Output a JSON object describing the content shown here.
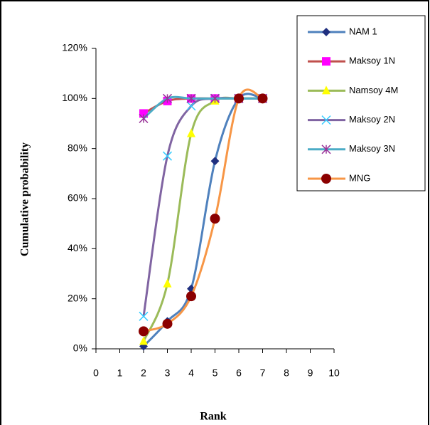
{
  "chart_data": {
    "type": "line",
    "smooth": true,
    "x_label": "Rank",
    "y_label": "Cumulative probability",
    "x": [
      2,
      3,
      4,
      5,
      6,
      7
    ],
    "series": [
      {
        "name": "NAM 1",
        "color": "#4F81BD",
        "marker_color": "#1F2F7F",
        "marker": "diamond",
        "values": [
          1,
          11,
          24,
          75,
          100,
          100
        ]
      },
      {
        "name": "Maksoy  1N",
        "color": "#C0504D",
        "marker_color": "#FF00FF",
        "marker": "square",
        "values": [
          94,
          99,
          100,
          100,
          100,
          100
        ]
      },
      {
        "name": "Namsoy 4M",
        "color": "#9BBB59",
        "marker_color": "#FFFF00",
        "marker": "triangle",
        "values": [
          3,
          26,
          86,
          99,
          100,
          100
        ]
      },
      {
        "name": "Maksoy 2N",
        "color": "#8064A2",
        "marker_color": "#33CCFF",
        "marker": "x",
        "values": [
          13,
          77,
          97,
          100,
          100,
          100
        ]
      },
      {
        "name": "Maksoy 3N",
        "color": "#4BACC6",
        "marker_color": "#993399",
        "marker": "star",
        "values": [
          92,
          100,
          100,
          100,
          100,
          100
        ]
      },
      {
        "name": "MNG",
        "color": "#F79646",
        "marker_color": "#8B0000",
        "marker": "circle",
        "values": [
          7,
          10,
          21,
          52,
          100,
          100
        ]
      }
    ],
    "xlim": [
      0,
      10
    ],
    "xticks": [
      0,
      1,
      2,
      3,
      4,
      5,
      6,
      7,
      8,
      9,
      10
    ],
    "ylim": [
      0,
      120
    ],
    "yticks": [
      {
        "value": 0,
        "label": "0%"
      },
      {
        "value": 20,
        "label": "20%"
      },
      {
        "value": 40,
        "label": "40%"
      },
      {
        "value": 60,
        "label": "60%"
      },
      {
        "value": 80,
        "label": "80%"
      },
      {
        "value": 100,
        "label": "100%"
      },
      {
        "value": 120,
        "label": "120%"
      }
    ],
    "grid": false,
    "legend": "top-right"
  }
}
